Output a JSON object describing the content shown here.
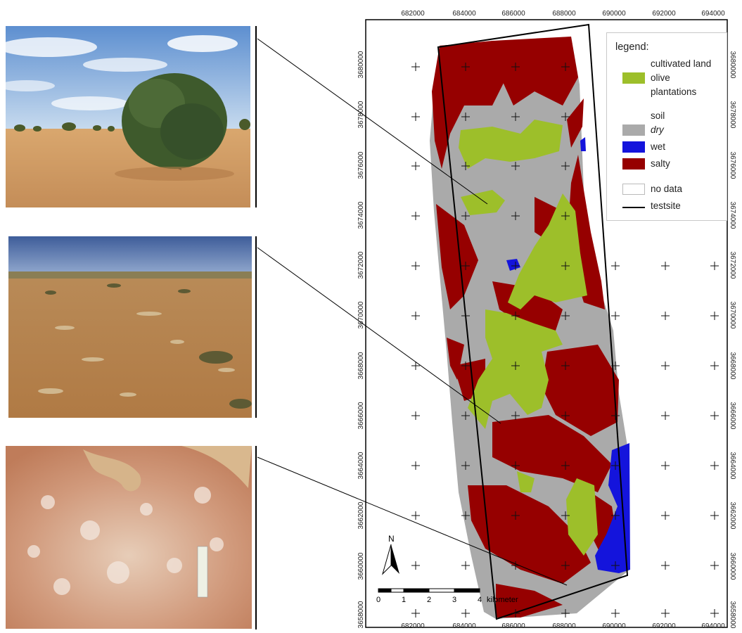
{
  "map": {
    "top_x_labels": [
      "682000",
      "684000",
      "686000",
      "688000",
      "690000",
      "692000",
      "694000"
    ],
    "bottom_x_labels": [
      "682000",
      "684000",
      "686000",
      "688000",
      "690000",
      "692000",
      "694000"
    ],
    "left_y_labels": [
      "3680000",
      "3678000",
      "3676000",
      "3674000",
      "3672000",
      "3670000",
      "3668000",
      "3666000",
      "3664000",
      "3662000",
      "3660000",
      "3658000"
    ],
    "right_y_labels": [
      "3680000",
      "3678000",
      "3676000",
      "3674000",
      "3672000",
      "3670000",
      "3668000",
      "3666000",
      "3664000",
      "3662000",
      "3660000",
      "3658000"
    ],
    "colors": {
      "cultivated": "#9dbf2a",
      "dry": "#aaaaaa",
      "wet": "#1414dc",
      "salty": "#960000",
      "no_data": "#ffffff",
      "testsite": "#000000"
    }
  },
  "legend": {
    "title": "legend:",
    "group1_heading": "cultivated land",
    "olive_line1": "olive",
    "olive_line2": "plantations",
    "soil_heading": "soil",
    "dry": "dry",
    "wet": "wet",
    "salty": "salty",
    "no_data": "no data",
    "testsite": "testsite"
  },
  "scalebar": {
    "ticks": [
      "0",
      "1",
      "2",
      "3",
      "4"
    ],
    "unit": "kilometer"
  },
  "north_label": "N",
  "photos": [
    {
      "subject": "olive-tree"
    },
    {
      "subject": "dry-soil"
    },
    {
      "subject": "salty-crust"
    }
  ]
}
